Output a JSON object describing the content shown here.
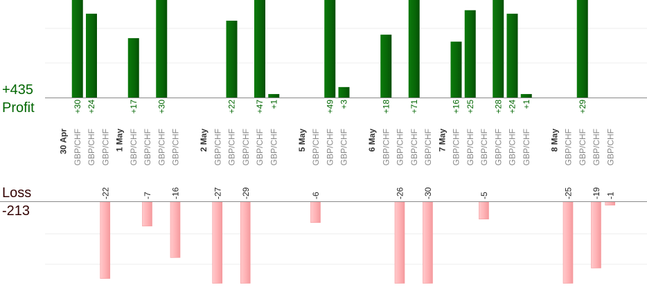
{
  "labels": {
    "profit_total": "+435",
    "profit_title": "Profit",
    "loss_title": "Loss",
    "loss_total": "-213"
  },
  "colors": {
    "profit_bar": "#0a6a0a",
    "profit_text": "#006600",
    "loss_bar": "#ffb6b9",
    "loss_text": "#330000",
    "pair_text": "#888888",
    "date_text": "#333333",
    "grid": "#eeeeee"
  },
  "chart_data": {
    "type": "bar",
    "pair": "GBP/CHF",
    "dates": [
      {
        "label": "30 Apr",
        "slot": 0
      },
      {
        "label": "1 May",
        "slot": 4
      },
      {
        "label": "2 May",
        "slot": 10
      },
      {
        "label": "5 May",
        "slot": 17
      },
      {
        "label": "6 May",
        "slot": 22
      },
      {
        "label": "7 May",
        "slot": 27
      },
      {
        "label": "8 May",
        "slot": 35
      }
    ],
    "trades": [
      {
        "slot": 1,
        "value": 30,
        "label": "+30"
      },
      {
        "slot": 2,
        "value": 24,
        "label": "+24"
      },
      {
        "slot": 3,
        "value": -22,
        "label": "-22"
      },
      {
        "slot": 5,
        "value": 17,
        "label": "+17"
      },
      {
        "slot": 6,
        "value": -7,
        "label": "-7"
      },
      {
        "slot": 7,
        "value": 30,
        "label": "+30"
      },
      {
        "slot": 8,
        "value": -16,
        "label": "-16"
      },
      {
        "slot": 11,
        "value": -27,
        "label": "-27"
      },
      {
        "slot": 12,
        "value": 22,
        "label": "+22"
      },
      {
        "slot": 13,
        "value": -29,
        "label": "-29"
      },
      {
        "slot": 14,
        "value": 47,
        "label": "+47"
      },
      {
        "slot": 15,
        "value": 1,
        "label": "+1"
      },
      {
        "slot": 18,
        "value": -6,
        "label": "-6"
      },
      {
        "slot": 19,
        "value": 49,
        "label": "+49"
      },
      {
        "slot": 20,
        "value": 3,
        "label": "+3"
      },
      {
        "slot": 23,
        "value": 18,
        "label": "+18"
      },
      {
        "slot": 24,
        "value": -26,
        "label": "-26"
      },
      {
        "slot": 25,
        "value": 71,
        "label": "+71"
      },
      {
        "slot": 26,
        "value": -30,
        "label": "-30"
      },
      {
        "slot": 28,
        "value": 16,
        "label": "+16"
      },
      {
        "slot": 29,
        "value": 25,
        "label": "+25"
      },
      {
        "slot": 30,
        "value": -5,
        "label": "-5"
      },
      {
        "slot": 31,
        "value": 28,
        "label": "+28"
      },
      {
        "slot": 32,
        "value": 24,
        "label": "+24"
      },
      {
        "slot": 33,
        "value": 1,
        "label": "+1"
      },
      {
        "slot": 36,
        "value": -25,
        "label": "-25"
      },
      {
        "slot": 37,
        "value": 29,
        "label": "+29"
      },
      {
        "slot": 38,
        "value": -19,
        "label": "-19"
      },
      {
        "slot": 39,
        "value": -1,
        "label": "-1"
      }
    ]
  }
}
